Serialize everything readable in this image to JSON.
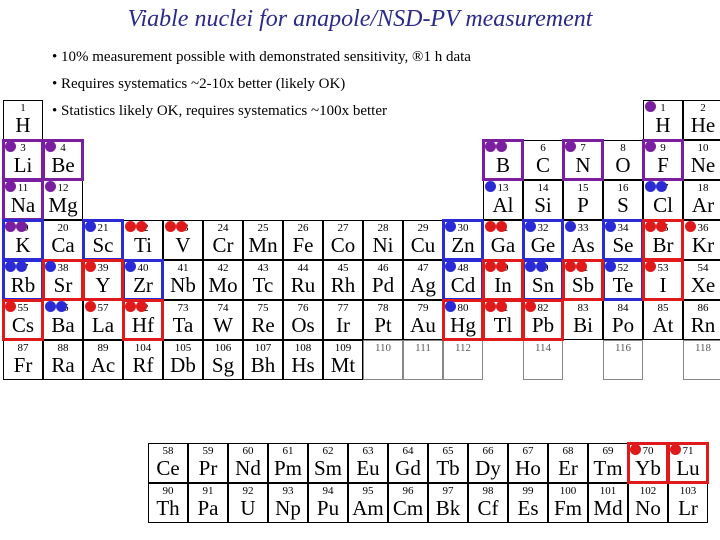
{
  "title": "Viable nuclei for anapole/NSD-PV measurement",
  "colors": {
    "purple": "#7a1fa0",
    "blue": "#2b2bd6",
    "red": "#e01a1a",
    "title": "#2a2a8c"
  },
  "legend": [
    {
      "color": "purple",
      "text": "• 10% measurement possible with demonstrated sensitivity, ®1 h data"
    },
    {
      "color": "blue",
      "text": "• Requires systematics ~2-10x better (likely OK)"
    },
    {
      "color": "red",
      "text": "• Statistics likely OK, requires systematics ~100x better"
    }
  ],
  "main_table": [
    {
      "z": "1",
      "s": "H",
      "r": 0,
      "c": 0
    },
    {
      "z": "1",
      "s": "H",
      "r": 0,
      "c": 16
    },
    {
      "z": "2",
      "s": "He",
      "r": 0,
      "c": 17
    },
    {
      "z": "3",
      "s": "Li",
      "r": 1,
      "c": 0
    },
    {
      "z": "4",
      "s": "Be",
      "r": 1,
      "c": 1
    },
    {
      "z": "5",
      "s": "B",
      "r": 1,
      "c": 12
    },
    {
      "z": "6",
      "s": "C",
      "r": 1,
      "c": 13
    },
    {
      "z": "7",
      "s": "N",
      "r": 1,
      "c": 14
    },
    {
      "z": "8",
      "s": "O",
      "r": 1,
      "c": 15
    },
    {
      "z": "9",
      "s": "F",
      "r": 1,
      "c": 16
    },
    {
      "z": "10",
      "s": "Ne",
      "r": 1,
      "c": 17
    },
    {
      "z": "11",
      "s": "Na",
      "r": 2,
      "c": 0
    },
    {
      "z": "12",
      "s": "Mg",
      "r": 2,
      "c": 1
    },
    {
      "z": "13",
      "s": "Al",
      "r": 2,
      "c": 12
    },
    {
      "z": "14",
      "s": "Si",
      "r": 2,
      "c": 13
    },
    {
      "z": "15",
      "s": "P",
      "r": 2,
      "c": 14
    },
    {
      "z": "16",
      "s": "S",
      "r": 2,
      "c": 15
    },
    {
      "z": "17",
      "s": "Cl",
      "r": 2,
      "c": 16
    },
    {
      "z": "18",
      "s": "Ar",
      "r": 2,
      "c": 17
    },
    {
      "z": "19",
      "s": "K",
      "r": 3,
      "c": 0
    },
    {
      "z": "20",
      "s": "Ca",
      "r": 3,
      "c": 1
    },
    {
      "z": "21",
      "s": "Sc",
      "r": 3,
      "c": 2
    },
    {
      "z": "22",
      "s": "Ti",
      "r": 3,
      "c": 3
    },
    {
      "z": "23",
      "s": "V",
      "r": 3,
      "c": 4
    },
    {
      "z": "24",
      "s": "Cr",
      "r": 3,
      "c": 5
    },
    {
      "z": "25",
      "s": "Mn",
      "r": 3,
      "c": 6
    },
    {
      "z": "26",
      "s": "Fe",
      "r": 3,
      "c": 7
    },
    {
      "z": "27",
      "s": "Co",
      "r": 3,
      "c": 8
    },
    {
      "z": "28",
      "s": "Ni",
      "r": 3,
      "c": 9
    },
    {
      "z": "29",
      "s": "Cu",
      "r": 3,
      "c": 10
    },
    {
      "z": "30",
      "s": "Zn",
      "r": 3,
      "c": 11
    },
    {
      "z": "31",
      "s": "Ga",
      "r": 3,
      "c": 12
    },
    {
      "z": "32",
      "s": "Ge",
      "r": 3,
      "c": 13
    },
    {
      "z": "33",
      "s": "As",
      "r": 3,
      "c": 14
    },
    {
      "z": "34",
      "s": "Se",
      "r": 3,
      "c": 15
    },
    {
      "z": "35",
      "s": "Br",
      "r": 3,
      "c": 16
    },
    {
      "z": "36",
      "s": "Kr",
      "r": 3,
      "c": 17
    },
    {
      "z": "37",
      "s": "Rb",
      "r": 4,
      "c": 0
    },
    {
      "z": "38",
      "s": "Sr",
      "r": 4,
      "c": 1
    },
    {
      "z": "39",
      "s": "Y",
      "r": 4,
      "c": 2
    },
    {
      "z": "40",
      "s": "Zr",
      "r": 4,
      "c": 3
    },
    {
      "z": "41",
      "s": "Nb",
      "r": 4,
      "c": 4
    },
    {
      "z": "42",
      "s": "Mo",
      "r": 4,
      "c": 5
    },
    {
      "z": "43",
      "s": "Tc",
      "r": 4,
      "c": 6
    },
    {
      "z": "44",
      "s": "Ru",
      "r": 4,
      "c": 7
    },
    {
      "z": "45",
      "s": "Rh",
      "r": 4,
      "c": 8
    },
    {
      "z": "46",
      "s": "Pd",
      "r": 4,
      "c": 9
    },
    {
      "z": "47",
      "s": "Ag",
      "r": 4,
      "c": 10
    },
    {
      "z": "48",
      "s": "Cd",
      "r": 4,
      "c": 11
    },
    {
      "z": "49",
      "s": "In",
      "r": 4,
      "c": 12
    },
    {
      "z": "50",
      "s": "Sn",
      "r": 4,
      "c": 13
    },
    {
      "z": "51",
      "s": "Sb",
      "r": 4,
      "c": 14
    },
    {
      "z": "52",
      "s": "Te",
      "r": 4,
      "c": 15
    },
    {
      "z": "53",
      "s": "I",
      "r": 4,
      "c": 16
    },
    {
      "z": "54",
      "s": "Xe",
      "r": 4,
      "c": 17
    },
    {
      "z": "55",
      "s": "Cs",
      "r": 5,
      "c": 0
    },
    {
      "z": "56",
      "s": "Ba",
      "r": 5,
      "c": 1
    },
    {
      "z": "57",
      "s": "La",
      "r": 5,
      "c": 2
    },
    {
      "z": "72",
      "s": "Hf",
      "r": 5,
      "c": 3
    },
    {
      "z": "73",
      "s": "Ta",
      "r": 5,
      "c": 4
    },
    {
      "z": "74",
      "s": "W",
      "r": 5,
      "c": 5
    },
    {
      "z": "75",
      "s": "Re",
      "r": 5,
      "c": 6
    },
    {
      "z": "76",
      "s": "Os",
      "r": 5,
      "c": 7
    },
    {
      "z": "77",
      "s": "Ir",
      "r": 5,
      "c": 8
    },
    {
      "z": "78",
      "s": "Pt",
      "r": 5,
      "c": 9
    },
    {
      "z": "79",
      "s": "Au",
      "r": 5,
      "c": 10
    },
    {
      "z": "80",
      "s": "Hg",
      "r": 5,
      "c": 11
    },
    {
      "z": "81",
      "s": "Tl",
      "r": 5,
      "c": 12
    },
    {
      "z": "82",
      "s": "Pb",
      "r": 5,
      "c": 13
    },
    {
      "z": "83",
      "s": "Bi",
      "r": 5,
      "c": 14
    },
    {
      "z": "84",
      "s": "Po",
      "r": 5,
      "c": 15
    },
    {
      "z": "85",
      "s": "At",
      "r": 5,
      "c": 16
    },
    {
      "z": "86",
      "s": "Rn",
      "r": 5,
      "c": 17
    },
    {
      "z": "87",
      "s": "Fr",
      "r": 6,
      "c": 0
    },
    {
      "z": "88",
      "s": "Ra",
      "r": 6,
      "c": 1
    },
    {
      "z": "89",
      "s": "Ac",
      "r": 6,
      "c": 2
    },
    {
      "z": "104",
      "s": "Rf",
      "r": 6,
      "c": 3
    },
    {
      "z": "105",
      "s": "Db",
      "r": 6,
      "c": 4
    },
    {
      "z": "106",
      "s": "Sg",
      "r": 6,
      "c": 5
    },
    {
      "z": "107",
      "s": "Bh",
      "r": 6,
      "c": 6
    },
    {
      "z": "108",
      "s": "Hs",
      "r": 6,
      "c": 7
    },
    {
      "z": "109",
      "s": "Mt",
      "r": 6,
      "c": 8
    },
    {
      "z": "110",
      "s": "",
      "r": 6,
      "c": 9
    },
    {
      "z": "111",
      "s": "",
      "r": 6,
      "c": 10
    },
    {
      "z": "112",
      "s": "",
      "r": 6,
      "c": 11
    },
    {
      "z": "114",
      "s": "",
      "r": 6,
      "c": 13
    },
    {
      "z": "116",
      "s": "",
      "r": 6,
      "c": 15
    },
    {
      "z": "118",
      "s": "",
      "r": 6,
      "c": 17
    }
  ],
  "f_block": [
    {
      "z": "58",
      "s": "Ce",
      "r": 0,
      "c": 0
    },
    {
      "z": "59",
      "s": "Pr",
      "r": 0,
      "c": 1
    },
    {
      "z": "60",
      "s": "Nd",
      "r": 0,
      "c": 2
    },
    {
      "z": "61",
      "s": "Pm",
      "r": 0,
      "c": 3
    },
    {
      "z": "62",
      "s": "Sm",
      "r": 0,
      "c": 4
    },
    {
      "z": "63",
      "s": "Eu",
      "r": 0,
      "c": 5
    },
    {
      "z": "64",
      "s": "Gd",
      "r": 0,
      "c": 6
    },
    {
      "z": "65",
      "s": "Tb",
      "r": 0,
      "c": 7
    },
    {
      "z": "66",
      "s": "Dy",
      "r": 0,
      "c": 8
    },
    {
      "z": "67",
      "s": "Ho",
      "r": 0,
      "c": 9
    },
    {
      "z": "68",
      "s": "Er",
      "r": 0,
      "c": 10
    },
    {
      "z": "69",
      "s": "Tm",
      "r": 0,
      "c": 11
    },
    {
      "z": "70",
      "s": "Yb",
      "r": 0,
      "c": 12
    },
    {
      "z": "71",
      "s": "Lu",
      "r": 0,
      "c": 13
    },
    {
      "z": "90",
      "s": "Th",
      "r": 1,
      "c": 0
    },
    {
      "z": "91",
      "s": "Pa",
      "r": 1,
      "c": 1
    },
    {
      "z": "92",
      "s": "U",
      "r": 1,
      "c": 2
    },
    {
      "z": "93",
      "s": "Np",
      "r": 1,
      "c": 3
    },
    {
      "z": "94",
      "s": "Pu",
      "r": 1,
      "c": 4
    },
    {
      "z": "95",
      "s": "Am",
      "r": 1,
      "c": 5
    },
    {
      "z": "96",
      "s": "Cm",
      "r": 1,
      "c": 6
    },
    {
      "z": "97",
      "s": "Bk",
      "r": 1,
      "c": 7
    },
    {
      "z": "98",
      "s": "Cf",
      "r": 1,
      "c": 8
    },
    {
      "z": "99",
      "s": "Es",
      "r": 1,
      "c": 9
    },
    {
      "z": "100",
      "s": "Fm",
      "r": 1,
      "c": 10
    },
    {
      "z": "101",
      "s": "Md",
      "r": 1,
      "c": 11
    },
    {
      "z": "102",
      "s": "No",
      "r": 1,
      "c": 12
    },
    {
      "z": "103",
      "s": "Lr",
      "r": 1,
      "c": 13
    }
  ],
  "highlights": {
    "main": [
      {
        "s": "Li",
        "color": "purple"
      },
      {
        "s": "Be",
        "color": "purple"
      },
      {
        "s": "Na",
        "color": "purple"
      },
      {
        "s": "B",
        "color": "purple"
      },
      {
        "s": "N",
        "color": "purple"
      },
      {
        "s": "F",
        "color": "purple"
      },
      {
        "s": "Sc",
        "color": "blue"
      },
      {
        "s": "Zn",
        "color": "blue"
      },
      {
        "s": "Ge",
        "color": "blue"
      },
      {
        "s": "Se",
        "color": "blue"
      },
      {
        "s": "Rb",
        "color": "blue"
      },
      {
        "s": "Zr",
        "color": "blue"
      },
      {
        "s": "Cd",
        "color": "blue"
      },
      {
        "s": "Sn",
        "color": "blue"
      },
      {
        "s": "Te",
        "color": "blue"
      },
      {
        "s": "K",
        "color": "blue"
      },
      {
        "s": "Br",
        "color": "red"
      },
      {
        "s": "Sr",
        "color": "red"
      },
      {
        "s": "Y",
        "color": "red"
      },
      {
        "s": "In",
        "color": "red"
      },
      {
        "s": "Sb",
        "color": "red"
      },
      {
        "s": "I",
        "color": "red"
      },
      {
        "s": "Cs",
        "color": "red"
      },
      {
        "s": "Hf",
        "color": "red"
      },
      {
        "s": "Hg",
        "color": "red"
      },
      {
        "s": "Tl",
        "color": "red"
      },
      {
        "s": "Pb",
        "color": "red"
      }
    ],
    "f_block": [
      {
        "s": "Yb",
        "color": "red"
      },
      {
        "s": "Lu",
        "color": "red"
      }
    ]
  },
  "dots": {
    "main": [
      {
        "s": "H",
        "colors": [
          "purple"
        ]
      },
      {
        "s": "Li",
        "colors": [
          "purple"
        ]
      },
      {
        "s": "Be",
        "colors": [
          "purple"
        ]
      },
      {
        "s": "Na",
        "colors": [
          "purple"
        ]
      },
      {
        "s": "Mg",
        "colors": [
          "purple"
        ]
      },
      {
        "s": "B",
        "colors": [
          "purple",
          "purple"
        ]
      },
      {
        "s": "N",
        "colors": [
          "purple"
        ]
      },
      {
        "s": "F",
        "colors": [
          "purple"
        ]
      },
      {
        "s": "Al",
        "colors": [
          "blue"
        ]
      },
      {
        "s": "Cl",
        "colors": [
          "blue",
          "blue"
        ]
      },
      {
        "s": "K",
        "colors": [
          "purple",
          "purple"
        ]
      },
      {
        "s": "Sc",
        "colors": [
          "blue"
        ]
      },
      {
        "s": "Ti",
        "colors": [
          "red",
          "red"
        ]
      },
      {
        "s": "V",
        "colors": [
          "red",
          "red"
        ]
      },
      {
        "s": "Ga",
        "colors": [
          "red",
          "red"
        ]
      },
      {
        "s": "As",
        "colors": [
          "blue"
        ]
      },
      {
        "s": "Br",
        "colors": [
          "red",
          "red"
        ]
      },
      {
        "s": "Kr",
        "colors": [
          "red"
        ]
      },
      {
        "s": "Ge",
        "colors": [
          "blue"
        ]
      },
      {
        "s": "Se",
        "colors": [
          "blue"
        ]
      },
      {
        "s": "Zn",
        "colors": [
          "blue"
        ]
      },
      {
        "s": "Rb",
        "colors": [
          "blue",
          "blue"
        ]
      },
      {
        "s": "Sr",
        "colors": [
          "blue"
        ]
      },
      {
        "s": "Y",
        "colors": [
          "red"
        ]
      },
      {
        "s": "Zr",
        "colors": [
          "blue"
        ]
      },
      {
        "s": "Cd",
        "colors": [
          "blue"
        ]
      },
      {
        "s": "In",
        "colors": [
          "red",
          "red"
        ]
      },
      {
        "s": "Sn",
        "colors": [
          "blue",
          "blue"
        ]
      },
      {
        "s": "Sb",
        "colors": [
          "red",
          "red"
        ]
      },
      {
        "s": "Te",
        "colors": [
          "blue"
        ]
      },
      {
        "s": "I",
        "colors": [
          "red"
        ]
      },
      {
        "s": "Cs",
        "colors": [
          "red"
        ]
      },
      {
        "s": "Ba",
        "colors": [
          "blue",
          "blue"
        ]
      },
      {
        "s": "La",
        "colors": [
          "red"
        ]
      },
      {
        "s": "Hf",
        "colors": [
          "red",
          "red"
        ]
      },
      {
        "s": "Hg",
        "colors": [
          "blue"
        ]
      },
      {
        "s": "Tl",
        "colors": [
          "red",
          "red"
        ]
      },
      {
        "s": "Pb",
        "colors": [
          "red"
        ]
      }
    ],
    "f_block": [
      {
        "s": "Yb",
        "colors": [
          "red"
        ]
      },
      {
        "s": "Lu",
        "colors": [
          "red"
        ]
      }
    ]
  }
}
